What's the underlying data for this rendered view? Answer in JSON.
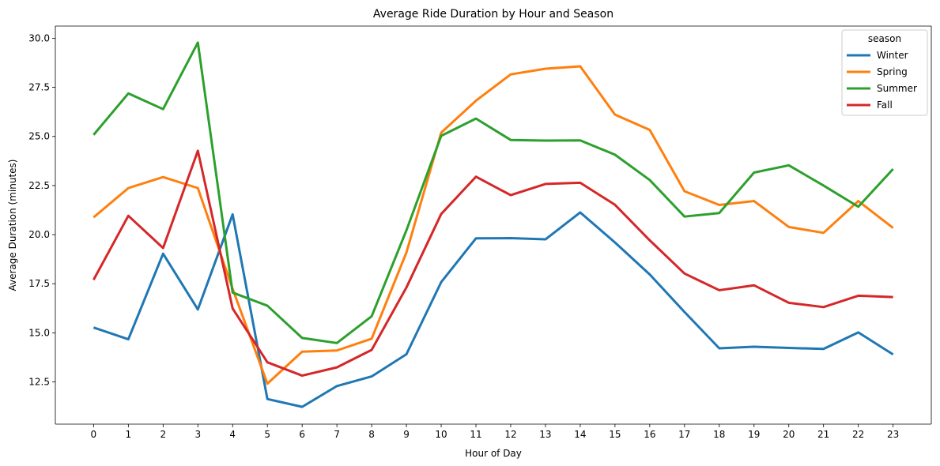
{
  "chart_data": {
    "type": "line",
    "title": "Average Ride Duration by Hour and Season",
    "xlabel": "Hour of Day",
    "ylabel": "Average Duration (minutes)",
    "x": [
      0,
      1,
      2,
      3,
      4,
      5,
      6,
      7,
      8,
      9,
      10,
      11,
      12,
      13,
      14,
      15,
      16,
      17,
      18,
      19,
      20,
      21,
      22,
      23
    ],
    "x_tick_labels": [
      "0",
      "1",
      "2",
      "3",
      "4",
      "5",
      "6",
      "7",
      "8",
      "9",
      "10",
      "11",
      "12",
      "13",
      "14",
      "15",
      "16",
      "17",
      "18",
      "19",
      "20",
      "21",
      "22",
      "23"
    ],
    "xlim": [
      -1.1,
      24.1
    ],
    "ylim": [
      10.35,
      30.62
    ],
    "y_ticks": [
      12.5,
      15.0,
      17.5,
      20.0,
      22.5,
      25.0,
      27.5,
      30.0
    ],
    "y_tick_labels": [
      "12.5",
      "15.0",
      "17.5",
      "20.0",
      "22.5",
      "25.0",
      "27.5",
      "30.0"
    ],
    "grid": false,
    "legend": {
      "title": "season",
      "placement": "top-right"
    },
    "series": [
      {
        "name": "Winter",
        "color": "#1f77b4",
        "values": [
          15.27,
          14.67,
          19.03,
          16.19,
          21.03,
          11.63,
          11.23,
          12.29,
          12.78,
          13.91,
          17.58,
          19.81,
          19.82,
          19.76,
          21.13,
          19.6,
          17.97,
          16.06,
          14.21,
          14.29,
          14.23,
          14.18,
          15.02,
          13.9
        ]
      },
      {
        "name": "Spring",
        "color": "#ff7f0e",
        "values": [
          20.88,
          22.37,
          22.93,
          22.37,
          17.24,
          12.41,
          14.04,
          14.1,
          14.7,
          19.09,
          25.19,
          26.82,
          28.16,
          28.45,
          28.57,
          26.11,
          25.33,
          22.21,
          21.51,
          21.71,
          20.39,
          20.09,
          21.71,
          20.34
        ]
      },
      {
        "name": "Summer",
        "color": "#2ca02c",
        "values": [
          25.08,
          27.19,
          26.39,
          29.78,
          17.05,
          16.38,
          14.74,
          14.48,
          15.84,
          20.22,
          25.03,
          25.91,
          24.82,
          24.79,
          24.8,
          24.07,
          22.78,
          20.92,
          21.1,
          23.16,
          23.53,
          22.5,
          21.42,
          23.34
        ]
      },
      {
        "name": "Fall",
        "color": "#d62728",
        "values": [
          17.7,
          20.96,
          19.32,
          24.27,
          16.24,
          13.5,
          12.82,
          13.24,
          14.13,
          17.31,
          21.05,
          22.95,
          22.01,
          22.58,
          22.64,
          21.52,
          19.71,
          18.02,
          17.17,
          17.42,
          16.53,
          16.31,
          16.89,
          16.82
        ]
      }
    ]
  }
}
